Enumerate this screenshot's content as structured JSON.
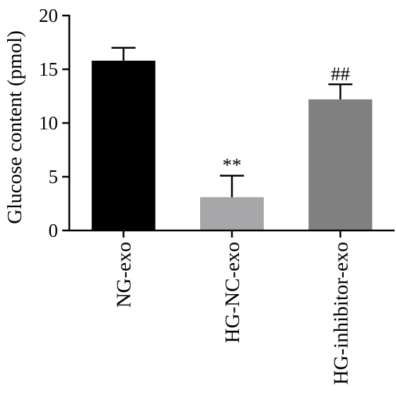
{
  "chart_data": {
    "type": "bar",
    "categories": [
      "NG-exo",
      "HG-NC-exo",
      "HG-inhibitor-exo"
    ],
    "values": [
      15.8,
      3.1,
      12.2
    ],
    "error": [
      1.2,
      2.0,
      1.4
    ],
    "significance": [
      "",
      "**",
      "##"
    ],
    "ylabel": "Glucose content (pmol)",
    "xlabel": "",
    "ylim": [
      0,
      20
    ],
    "yticks": [
      0,
      5,
      10,
      15,
      20
    ],
    "colors": [
      "#000000",
      "#a7a7a9",
      "#7f807f"
    ],
    "grid": false,
    "legend": "none"
  }
}
